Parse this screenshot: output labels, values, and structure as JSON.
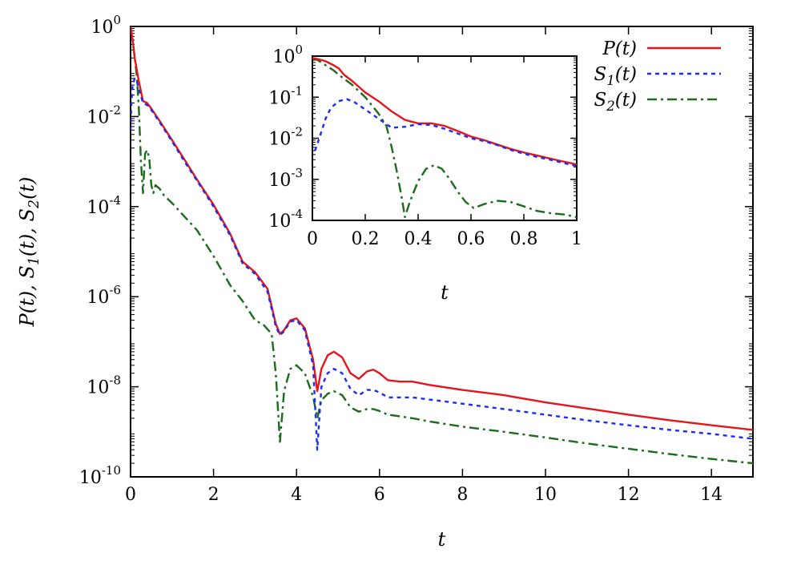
{
  "chart_data": [
    {
      "type": "line",
      "xlabel": "t",
      "ylabel": "P(t), S1(t), S2(t)",
      "xlim": [
        0,
        15
      ],
      "ylim_log10": [
        -10,
        0
      ],
      "yscale": "log",
      "xticks": [
        0,
        2,
        4,
        6,
        8,
        10,
        12,
        14
      ],
      "yticks_log10": [
        0,
        -2,
        -4,
        -6,
        -8,
        -10
      ],
      "grid": false,
      "legend_position": "top-right",
      "series": [
        {
          "name": "P(t)",
          "color": "#e8141c",
          "style": "solid",
          "points": [
            [
              0,
              1
            ],
            [
              0.05,
              0.5
            ],
            [
              0.1,
              0.2
            ],
            [
              0.2,
              0.06
            ],
            [
              0.3,
              0.022
            ],
            [
              0.4,
              0.02
            ],
            [
              0.5,
              0.015
            ],
            [
              0.7,
              0.008
            ],
            [
              1.0,
              0.003
            ],
            [
              1.3,
              0.0011
            ],
            [
              1.6,
              0.0004
            ],
            [
              2.0,
              0.00011
            ],
            [
              2.4,
              2.5e-05
            ],
            [
              2.7,
              6e-06
            ],
            [
              3.0,
              3.5e-06
            ],
            [
              3.3,
              1.5e-06
            ],
            [
              3.5,
              2.5e-07
            ],
            [
              3.6,
              1.5e-07
            ],
            [
              3.7,
              1.8e-07
            ],
            [
              3.85,
              3e-07
            ],
            [
              4.0,
              3.3e-07
            ],
            [
              4.2,
              2e-07
            ],
            [
              4.4,
              4e-08
            ],
            [
              4.5,
              8e-09
            ],
            [
              4.6,
              2.5e-08
            ],
            [
              4.75,
              5e-08
            ],
            [
              4.9,
              6e-08
            ],
            [
              5.1,
              4.5e-08
            ],
            [
              5.3,
              2e-08
            ],
            [
              5.5,
              1.5e-08
            ],
            [
              5.7,
              2.2e-08
            ],
            [
              5.85,
              2.4e-08
            ],
            [
              6.0,
              2e-08
            ],
            [
              6.2,
              1.4e-08
            ],
            [
              6.5,
              1.3e-08
            ],
            [
              6.8,
              1.3e-08
            ],
            [
              7.2,
              1.1e-08
            ],
            [
              8,
              8.5e-09
            ],
            [
              9,
              6.5e-09
            ],
            [
              10,
              4.5e-09
            ],
            [
              11,
              3.3e-09
            ],
            [
              12,
              2.4e-09
            ],
            [
              13,
              1.8e-09
            ],
            [
              14,
              1.4e-09
            ],
            [
              15,
              1.1e-09
            ]
          ]
        },
        {
          "name": "S1(t)",
          "color": "#1a2ef0",
          "style": "dotted",
          "points": [
            [
              0,
              0.005
            ],
            [
              0.02,
              0.02
            ],
            [
              0.05,
              0.05
            ],
            [
              0.1,
              0.07
            ],
            [
              0.15,
              0.06
            ],
            [
              0.2,
              0.04
            ],
            [
              0.3,
              0.02
            ],
            [
              0.4,
              0.018
            ],
            [
              0.5,
              0.014
            ],
            [
              0.7,
              0.0075
            ],
            [
              1.0,
              0.0028
            ],
            [
              1.3,
              0.001
            ],
            [
              1.6,
              0.00038
            ],
            [
              2.0,
              0.0001
            ],
            [
              2.4,
              2.3e-05
            ],
            [
              2.7,
              5.5e-06
            ],
            [
              3.0,
              3.2e-06
            ],
            [
              3.3,
              1.3e-06
            ],
            [
              3.5,
              2.2e-07
            ],
            [
              3.6,
              1.4e-07
            ],
            [
              3.7,
              1.7e-07
            ],
            [
              3.85,
              2.8e-07
            ],
            [
              4.0,
              3e-07
            ],
            [
              4.2,
              1.8e-07
            ],
            [
              4.4,
              3e-08
            ],
            [
              4.5,
              4e-10
            ],
            [
              4.6,
              1e-08
            ],
            [
              4.75,
              2e-08
            ],
            [
              4.9,
              2.5e-08
            ],
            [
              5.1,
              2e-08
            ],
            [
              5.3,
              9e-09
            ],
            [
              5.5,
              6.5e-09
            ],
            [
              5.7,
              8.5e-09
            ],
            [
              5.85,
              8.5e-09
            ],
            [
              6.0,
              7.5e-09
            ],
            [
              6.2,
              5.8e-09
            ],
            [
              6.5,
              5.8e-09
            ],
            [
              6.8,
              5.8e-09
            ],
            [
              7.2,
              5.2e-09
            ],
            [
              8,
              4.2e-09
            ],
            [
              9,
              3.2e-09
            ],
            [
              10,
              2.4e-09
            ],
            [
              11,
              1.8e-09
            ],
            [
              12,
              1.4e-09
            ],
            [
              13,
              1.1e-09
            ],
            [
              14,
              9e-10
            ],
            [
              15,
              7e-10
            ]
          ]
        },
        {
          "name": "S2(t)",
          "color": "#1a6b1a",
          "style": "dash-dot",
          "points": [
            [
              0,
              1
            ],
            [
              0.05,
              0.5
            ],
            [
              0.1,
              0.2
            ],
            [
              0.15,
              0.08
            ],
            [
              0.2,
              0.015
            ],
            [
              0.25,
              0.001
            ],
            [
              0.3,
              0.0002
            ],
            [
              0.35,
              0.0015
            ],
            [
              0.4,
              0.0018
            ],
            [
              0.45,
              0.0012
            ],
            [
              0.5,
              0.0003
            ],
            [
              0.55,
              0.0002
            ],
            [
              0.6,
              0.0003
            ],
            [
              0.7,
              0.00025
            ],
            [
              0.8,
              0.00018
            ],
            [
              1.0,
              0.00012
            ],
            [
              1.3,
              6e-05
            ],
            [
              1.6,
              3e-05
            ],
            [
              2.0,
              8e-06
            ],
            [
              2.4,
              1.8e-06
            ],
            [
              2.7,
              8e-07
            ],
            [
              3.0,
              3e-07
            ],
            [
              3.2,
              2.4e-07
            ],
            [
              3.4,
              1.5e-07
            ],
            [
              3.5,
              2e-08
            ],
            [
              3.6,
              6e-10
            ],
            [
              3.7,
              8e-09
            ],
            [
              3.85,
              2.5e-08
            ],
            [
              4.0,
              3e-08
            ],
            [
              4.2,
              2e-08
            ],
            [
              4.4,
              6e-09
            ],
            [
              4.5,
              2e-09
            ],
            [
              4.6,
              5e-09
            ],
            [
              4.75,
              7e-09
            ],
            [
              4.9,
              8e-09
            ],
            [
              5.1,
              6.5e-09
            ],
            [
              5.3,
              3.5e-09
            ],
            [
              5.5,
              2.8e-09
            ],
            [
              5.7,
              3.2e-09
            ],
            [
              5.85,
              3.2e-09
            ],
            [
              6.0,
              2.9e-09
            ],
            [
              6.2,
              2.4e-09
            ],
            [
              6.5,
              2.2e-09
            ],
            [
              6.8,
              2e-09
            ],
            [
              7.2,
              1.7e-09
            ],
            [
              8,
              1.3e-09
            ],
            [
              9,
              1e-09
            ],
            [
              10,
              7.5e-10
            ],
            [
              11,
              5.5e-10
            ],
            [
              12,
              4.2e-10
            ],
            [
              13,
              3.2e-10
            ],
            [
              14,
              2.5e-10
            ],
            [
              15,
              2e-10
            ]
          ]
        }
      ]
    },
    {
      "type": "line",
      "inset": true,
      "xlabel": "t",
      "ylabel": "",
      "xlim": [
        0,
        1
      ],
      "ylim_log10": [
        -4,
        0
      ],
      "yscale": "log",
      "xticks": [
        "0",
        "0.2",
        "0.4",
        "0.6",
        "0.8",
        "1"
      ],
      "yticks_log10": [
        0,
        -1,
        -2,
        -3,
        -4
      ],
      "grid": false,
      "series": [
        {
          "name": "P(t)",
          "color": "#e8141c",
          "style": "solid",
          "points": [
            [
              0,
              0.9
            ],
            [
              0.02,
              0.85
            ],
            [
              0.05,
              0.75
            ],
            [
              0.08,
              0.6
            ],
            [
              0.1,
              0.5
            ],
            [
              0.12,
              0.35
            ],
            [
              0.15,
              0.25
            ],
            [
              0.2,
              0.13
            ],
            [
              0.25,
              0.08
            ],
            [
              0.3,
              0.045
            ],
            [
              0.35,
              0.028
            ],
            [
              0.4,
              0.023
            ],
            [
              0.45,
              0.023
            ],
            [
              0.5,
              0.02
            ],
            [
              0.55,
              0.015
            ],
            [
              0.6,
              0.011
            ],
            [
              0.65,
              0.009
            ],
            [
              0.7,
              0.007
            ],
            [
              0.75,
              0.0055
            ],
            [
              0.8,
              0.0045
            ],
            [
              0.85,
              0.0038
            ],
            [
              0.9,
              0.0032
            ],
            [
              0.95,
              0.0027
            ],
            [
              1.0,
              0.0023
            ]
          ]
        },
        {
          "name": "S1(t)",
          "color": "#1a2ef0",
          "style": "dotted",
          "points": [
            [
              0.01,
              0.005
            ],
            [
              0.03,
              0.012
            ],
            [
              0.05,
              0.03
            ],
            [
              0.07,
              0.055
            ],
            [
              0.1,
              0.08
            ],
            [
              0.13,
              0.09
            ],
            [
              0.16,
              0.075
            ],
            [
              0.2,
              0.05
            ],
            [
              0.25,
              0.03
            ],
            [
              0.3,
              0.018
            ],
            [
              0.35,
              0.019
            ],
            [
              0.4,
              0.022
            ],
            [
              0.45,
              0.021
            ],
            [
              0.5,
              0.017
            ],
            [
              0.55,
              0.013
            ],
            [
              0.6,
              0.01
            ],
            [
              0.65,
              0.0085
            ],
            [
              0.7,
              0.0068
            ],
            [
              0.75,
              0.0052
            ],
            [
              0.8,
              0.0042
            ],
            [
              0.85,
              0.0035
            ],
            [
              0.9,
              0.003
            ],
            [
              0.95,
              0.0025
            ],
            [
              1.0,
              0.0021
            ]
          ]
        },
        {
          "name": "S2(t)",
          "color": "#1a6b1a",
          "style": "dash-dot",
          "points": [
            [
              0,
              0.9
            ],
            [
              0.02,
              0.8
            ],
            [
              0.05,
              0.6
            ],
            [
              0.08,
              0.45
            ],
            [
              0.1,
              0.35
            ],
            [
              0.15,
              0.2
            ],
            [
              0.2,
              0.1
            ],
            [
              0.25,
              0.04
            ],
            [
              0.28,
              0.02
            ],
            [
              0.3,
              0.006
            ],
            [
              0.32,
              0.0015
            ],
            [
              0.34,
              0.0003
            ],
            [
              0.35,
              0.00012
            ],
            [
              0.37,
              0.0003
            ],
            [
              0.4,
              0.0009
            ],
            [
              0.43,
              0.0018
            ],
            [
              0.46,
              0.0022
            ],
            [
              0.49,
              0.0018
            ],
            [
              0.52,
              0.001
            ],
            [
              0.55,
              0.0005
            ],
            [
              0.58,
              0.00028
            ],
            [
              0.61,
              0.0002
            ],
            [
              0.65,
              0.00025
            ],
            [
              0.7,
              0.0003
            ],
            [
              0.75,
              0.00028
            ],
            [
              0.8,
              0.00022
            ],
            [
              0.85,
              0.00017
            ],
            [
              0.9,
              0.00015
            ],
            [
              0.95,
              0.00014
            ],
            [
              1.0,
              0.00012
            ]
          ]
        }
      ]
    }
  ]
}
